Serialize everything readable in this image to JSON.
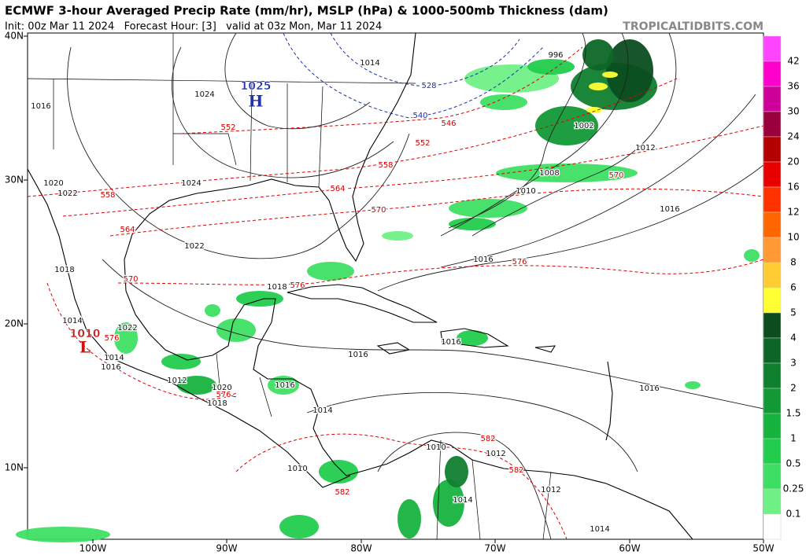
{
  "header": {
    "title": "ECMWF 3-hour Averaged Precip Rate (mm/hr), MSLP (hPa) & 1000-500mb Thickness (dam)",
    "subtitle": "Init: 00z Mar 11 2024   Forecast Hour: [3]   valid at 03z Mon, Mar 11 2024",
    "credit": "TROPICALTIDBITS.COM"
  },
  "axes": {
    "lat_labels": [
      "40N",
      "30N",
      "20N",
      "10N"
    ],
    "lon_labels": [
      "100W",
      "90W",
      "80W",
      "70W",
      "60W",
      "50W"
    ]
  },
  "colorbar": {
    "labels": [
      "42",
      "36",
      "30",
      "24",
      "20",
      "16",
      "12",
      "10",
      "8",
      "6",
      "5",
      "4",
      "3",
      "2",
      "1.5",
      "1",
      "0.5",
      "0.25",
      "0.1"
    ],
    "colors": [
      "#ff44ff",
      "#ff00cc",
      "#cc0099",
      "#99003d",
      "#b30000",
      "#e60000",
      "#ff3300",
      "#ff6600",
      "#ff9933",
      "#ffcc33",
      "#ffff33",
      "#0b4d1f",
      "#0d6626",
      "#0f802e",
      "#129936",
      "#16b33e",
      "#22cc4d",
      "#3ddf63",
      "#6ff085",
      "#ffffff"
    ]
  },
  "centers": [
    {
      "label": "1025",
      "symbol": "H"
    },
    {
      "label": "1010",
      "symbol": "L"
    }
  ],
  "isobar_labels": [
    "1014",
    "996",
    "1024",
    "1016",
    "1002",
    "1012",
    "1008",
    "1010",
    "1016",
    "1020",
    "1022",
    "1024",
    "1022",
    "1016",
    "1018",
    "1018",
    "1014",
    "1022",
    "1014",
    "1016",
    "1016",
    "1016",
    "1016",
    "1012",
    "1020",
    "1018",
    "1016",
    "1014",
    "1010",
    "1012",
    "1010",
    "1014",
    "1012",
    "1014"
  ],
  "thickness_labels": [
    "552",
    "546",
    "552",
    "558",
    "564",
    "570",
    "570",
    "576",
    "558",
    "564",
    "570",
    "576",
    "576",
    "576",
    "582",
    "582",
    "582",
    "528",
    "540"
  ]
}
